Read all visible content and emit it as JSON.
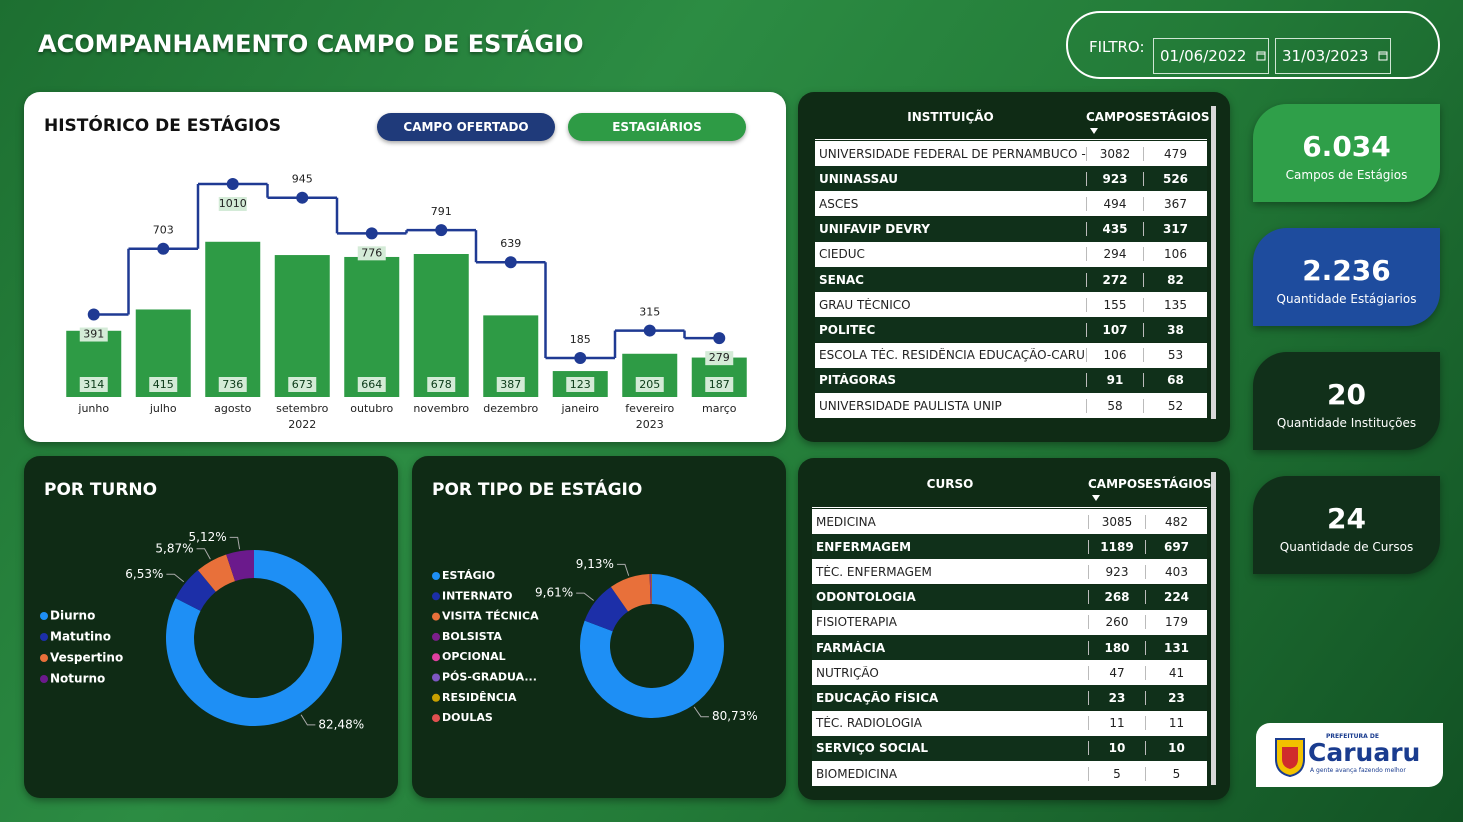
{
  "header": {
    "title": "ACOMPANHAMENTO CAMPO DE ESTÁGIO",
    "filter_label": "FILTRO:",
    "date_from": "01/06/2022",
    "date_to": "31/03/2023"
  },
  "chart_data": [
    {
      "type": "bar",
      "title": "HISTÓRICO DE ESTÁGIOS",
      "categories": [
        "junho",
        "julho",
        "agosto",
        "setembro",
        "outubro",
        "novembro",
        "dezembro",
        "janeiro",
        "fevereiro",
        "março"
      ],
      "year_labels": [
        null,
        null,
        null,
        "2022",
        null,
        null,
        null,
        null,
        "2023",
        null
      ],
      "series": [
        {
          "name": "ESTAGIÁRIOS",
          "type": "bar",
          "color": "#2e9b45",
          "values": [
            314,
            415,
            736,
            673,
            664,
            678,
            387,
            123,
            205,
            187
          ]
        },
        {
          "name": "CAMPO OFERTADO",
          "type": "line",
          "color": "#1f3a93",
          "values": [
            391,
            703,
            1010,
            945,
            776,
            791,
            639,
            185,
            315,
            279
          ]
        }
      ],
      "ylim": [
        0,
        1100
      ]
    },
    {
      "type": "pie",
      "title": "POR TURNO",
      "donut": true,
      "categories": [
        "Diurno",
        "Matutino",
        "Vespertino",
        "Noturno"
      ],
      "values": [
        82.48,
        6.53,
        5.87,
        5.12
      ],
      "value_labels": [
        "82,48%",
        "6,53%",
        "5,87%",
        "5,12%"
      ],
      "colors": [
        "#1e8ff5",
        "#1c2fa8",
        "#e8703a",
        "#6b1a8c"
      ]
    },
    {
      "type": "pie",
      "title": "POR TIPO DE ESTÁGIO",
      "donut": true,
      "categories": [
        "ESTÁGIO",
        "INTERNATO",
        "VISITA TÉCNICA",
        "BOLSISTA",
        "OPCIONAL",
        "PÓS-GRADUA...",
        "RESIDÊNCIA",
        "DOULAS"
      ],
      "values": [
        80.73,
        9.61,
        9.13,
        0.15,
        0.1,
        0.1,
        0.1,
        0.08
      ],
      "value_labels": [
        "80,73%",
        "9,61%",
        "9,13%",
        null,
        null,
        null,
        null,
        null
      ],
      "colors": [
        "#1e8ff5",
        "#1c2fa8",
        "#e8703a",
        "#7b1f8a",
        "#e040a0",
        "#7e57c2",
        "#c8a000",
        "#e05050"
      ]
    }
  ],
  "institutions": {
    "columns": [
      "INSTITUIÇÃO",
      "CAMPOS",
      "ESTÁGIOS"
    ],
    "rows": [
      [
        "UNIVERSIDADE FEDERAL DE PERNAMBUCO -...",
        3082,
        479
      ],
      [
        "UNINASSAU",
        923,
        526
      ],
      [
        "ASCES",
        494,
        367
      ],
      [
        "UNIFAVIP DEVRY",
        435,
        317
      ],
      [
        "CIEDUC",
        294,
        106
      ],
      [
        "SENAC",
        272,
        82
      ],
      [
        "GRAU TÉCNICO",
        155,
        135
      ],
      [
        "POLITEC",
        107,
        38
      ],
      [
        "ESCOLA TÉC. RESIDÊNCIA EDUCAÇÃO-CARU...",
        106,
        53
      ],
      [
        "PITÁGORAS",
        91,
        68
      ],
      [
        "UNIVERSIDADE PAULISTA UNIP",
        58,
        52
      ]
    ]
  },
  "courses": {
    "columns": [
      "CURSO",
      "CAMPOS",
      "ESTÁGIOS"
    ],
    "rows": [
      [
        "MEDICINA",
        3085,
        482
      ],
      [
        "ENFERMAGEM",
        1189,
        697
      ],
      [
        "TÉC. ENFERMAGEM",
        923,
        403
      ],
      [
        "ODONTOLOGIA",
        268,
        224
      ],
      [
        "FISIOTERAPIA",
        260,
        179
      ],
      [
        "FARMÁCIA",
        180,
        131
      ],
      [
        "NUTRIÇÃO",
        47,
        41
      ],
      [
        "EDUCAÇÃO FÍSICA",
        23,
        23
      ],
      [
        "TÉC. RADIOLOGIA",
        11,
        11
      ],
      [
        "SERVIÇO SOCIAL",
        10,
        10
      ],
      [
        "BIOMEDICINA",
        5,
        5
      ]
    ]
  },
  "kpis": [
    {
      "value": "6.034",
      "label": "Campos de Estágios"
    },
    {
      "value": "2.236",
      "label": "Quantidade Estágiarios"
    },
    {
      "value": "20",
      "label": "Quantidade Instituções"
    },
    {
      "value": "24",
      "label": "Quantidade de Cursos"
    }
  ],
  "logo": {
    "top": "PREFEITURA DE",
    "name": "Caruaru",
    "slogan": "A gente avança fazendo melhor"
  }
}
